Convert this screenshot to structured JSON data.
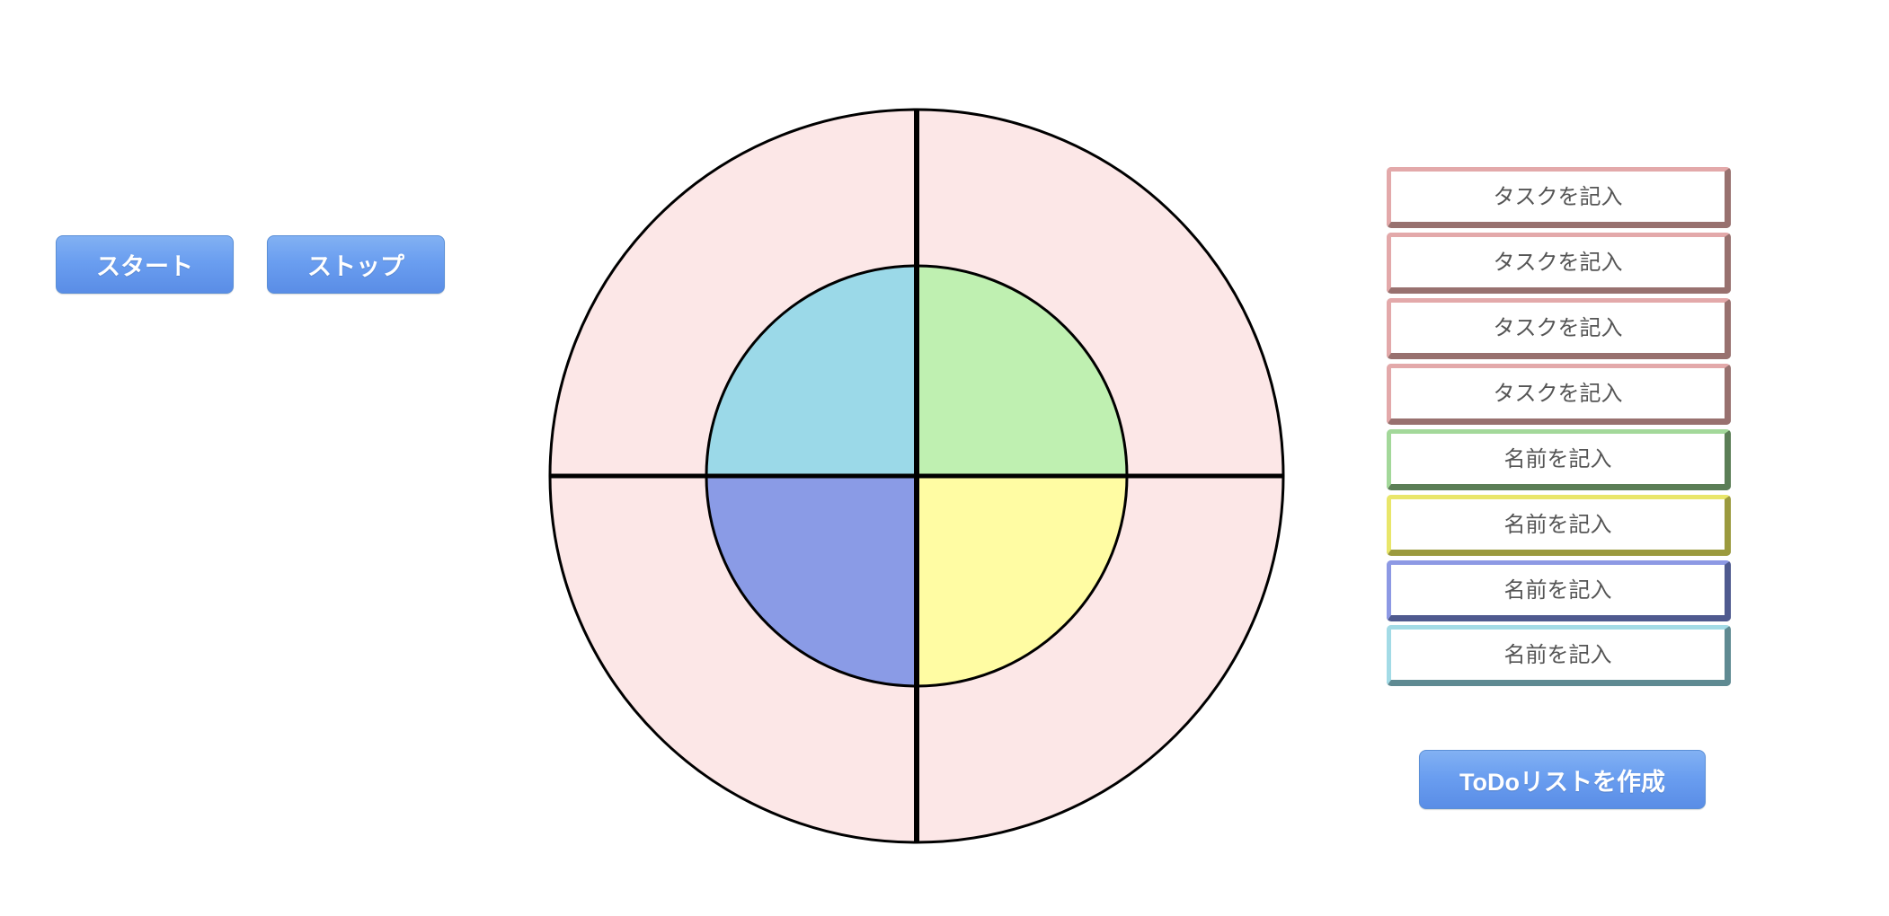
{
  "controls": {
    "start_label": "スタート",
    "stop_label": "ストップ"
  },
  "entries": {
    "tasks": [
      {
        "placeholder": "タスクを記入"
      },
      {
        "placeholder": "タスクを記入"
      },
      {
        "placeholder": "タスクを記入"
      },
      {
        "placeholder": "タスクを記入"
      }
    ],
    "names": [
      {
        "placeholder": "名前を記入",
        "color": "#a3d89a"
      },
      {
        "placeholder": "名前を記入",
        "color": "#e9e66a"
      },
      {
        "placeholder": "名前を記入",
        "color": "#8d99e4"
      },
      {
        "placeholder": "名前を記入",
        "color": "#a3dbe6"
      }
    ]
  },
  "create_button_label": "ToDoリストを作成",
  "wheel": {
    "outer_color": "#fce7e7",
    "inner_colors": {
      "top_left": "#9bd9e8",
      "top_right": "#bff0b1",
      "bottom_right": "#fffca3",
      "bottom_left": "#8a9be6"
    }
  }
}
